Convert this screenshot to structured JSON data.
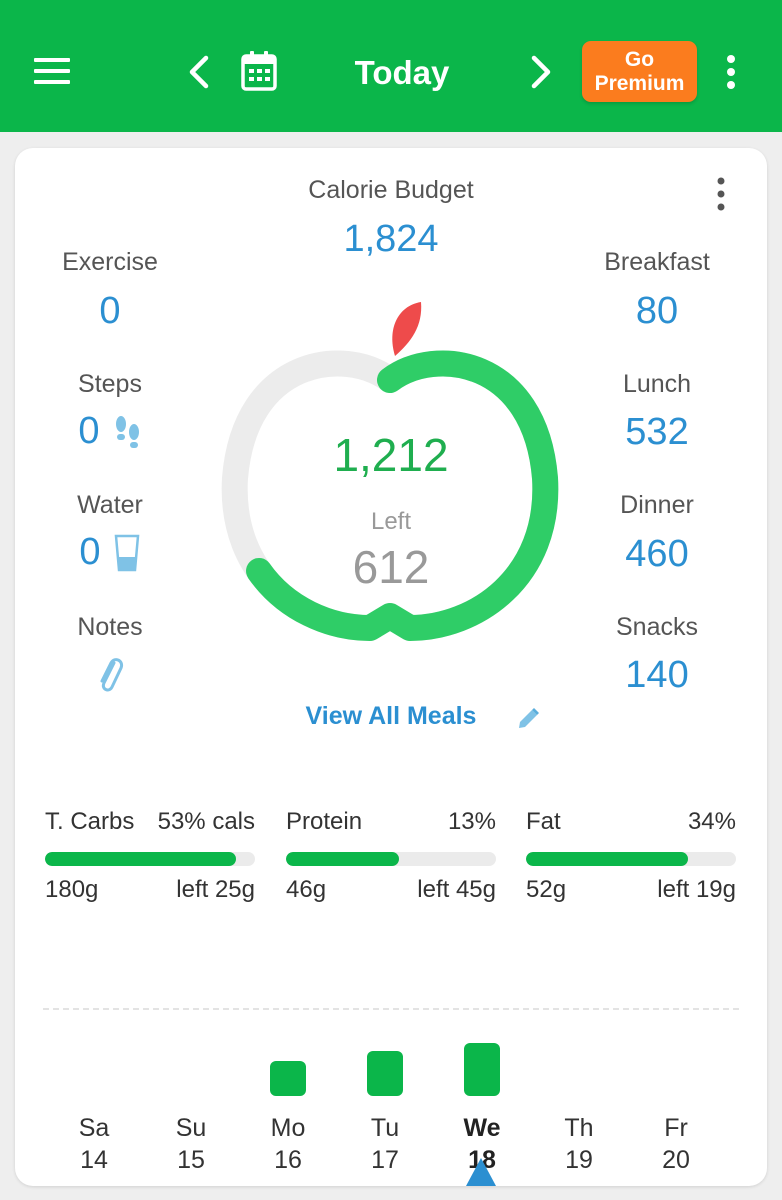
{
  "topbar": {
    "title": "Today",
    "premium_line1": "Go",
    "premium_line2": "Premium",
    "icons": [
      "menu-icon",
      "chevron-left-icon",
      "calendar-icon",
      "chevron-right-icon",
      "more-vert-icon"
    ],
    "color": "#0bb64a",
    "premium_color": "#fb7c1e"
  },
  "summary": {
    "budget_label": "Calorie Budget",
    "budget_value": "1,824",
    "eaten_value": "1,212",
    "left_label": "Left",
    "left_value": "612",
    "progress_fraction": 0.66,
    "left_items": [
      {
        "label": "Exercise",
        "value": "0",
        "icon": ""
      },
      {
        "label": "Steps",
        "value": "0",
        "icon": "footsteps-icon"
      },
      {
        "label": "Water",
        "value": "0",
        "icon": "water-glass-icon"
      },
      {
        "label": "Notes",
        "value": "",
        "icon": "paperclip-icon"
      }
    ],
    "right_items": [
      {
        "label": "Breakfast",
        "value": "80"
      },
      {
        "label": "Lunch",
        "value": "532"
      },
      {
        "label": "Dinner",
        "value": "460"
      },
      {
        "label": "Snacks",
        "value": "140"
      }
    ],
    "view_meals": "View All Meals"
  },
  "macros": [
    {
      "name": "T. Carbs",
      "pct": "53% cals",
      "eaten": "180g",
      "left": "left 25g",
      "fill": 0.91
    },
    {
      "name": "Protein",
      "pct": "13%",
      "eaten": "46g",
      "left": "left 45g",
      "fill": 0.54
    },
    {
      "name": "Fat",
      "pct": "34%",
      "eaten": "52g",
      "left": "left 19g",
      "fill": 0.77
    }
  ],
  "week": [
    {
      "day": "Sa",
      "date": "14",
      "level": 0,
      "selected": false
    },
    {
      "day": "Su",
      "date": "15",
      "level": 0,
      "selected": false
    },
    {
      "day": "Mo",
      "date": "16",
      "level": 0.48,
      "selected": false
    },
    {
      "day": "Tu",
      "date": "17",
      "level": 0.62,
      "selected": false
    },
    {
      "day": "We",
      "date": "18",
      "level": 0.74,
      "selected": true
    },
    {
      "day": "Th",
      "date": "19",
      "level": 0,
      "selected": false
    },
    {
      "day": "Fr",
      "date": "20",
      "level": 0,
      "selected": false
    }
  ],
  "colors": {
    "accent_blue": "#2b8fd1",
    "green": "#0bb64a",
    "ring_green": "#2fcd67",
    "apple_leaf": "#ee4b4b"
  }
}
